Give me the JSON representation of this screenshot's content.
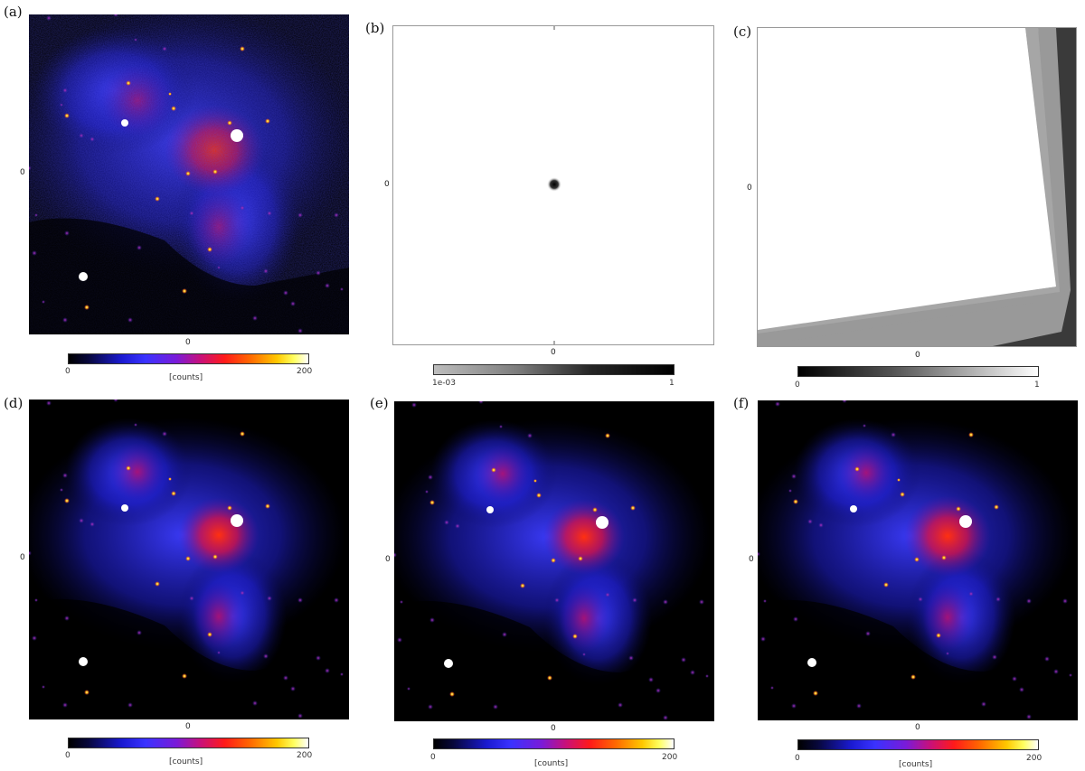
{
  "panels": {
    "a": {
      "label": "(a)",
      "x_tick": "0",
      "y_tick": "0",
      "cbar": {
        "min": "0",
        "max": "200",
        "unit": "[counts]"
      }
    },
    "b": {
      "label": "(b)",
      "x_tick": "0",
      "y_tick": "0",
      "cbar": {
        "min": "1e-03",
        "max": "1"
      }
    },
    "c": {
      "label": "(c)",
      "x_tick": "0",
      "y_tick": "0",
      "cbar": {
        "min": "0",
        "max": "1"
      }
    },
    "d": {
      "label": "(d)",
      "x_tick": "0",
      "y_tick": "0",
      "cbar": {
        "min": "0",
        "max": "200",
        "unit": "[counts]"
      }
    },
    "e": {
      "label": "(e)",
      "x_tick": "0",
      "y_tick": "0",
      "cbar": {
        "min": "0",
        "max": "200",
        "unit": "[counts]"
      }
    },
    "f": {
      "label": "(f)",
      "x_tick": "0",
      "y_tick": "0",
      "cbar": {
        "min": "0",
        "max": "200",
        "unit": "[counts]"
      }
    }
  },
  "colors": {
    "background": "#000000",
    "diffuse_blue": "#2a2aff",
    "diffuse_red": "#ff2a10",
    "point_source": "#ffd060"
  }
}
